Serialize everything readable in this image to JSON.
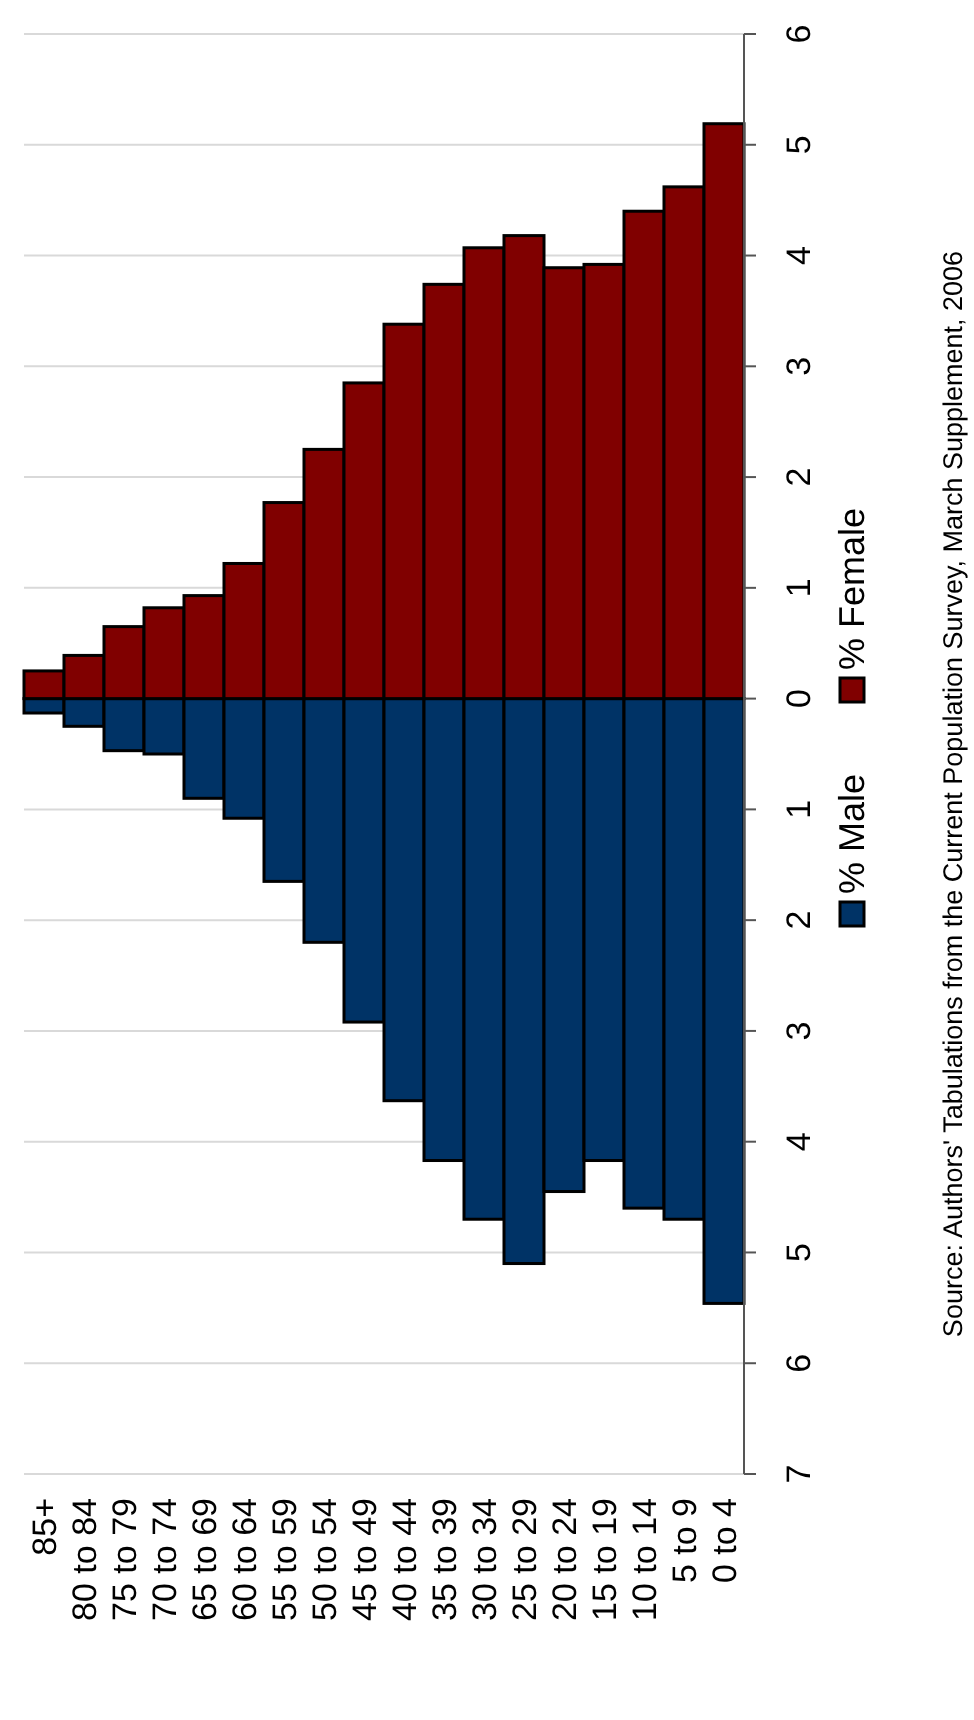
{
  "chart_data": {
    "type": "bar",
    "categories": [
      "85+",
      "80 to 84",
      "75 to 79",
      "70 to 74",
      "65 to 69",
      "60 to 64",
      "55 to 59",
      "50 to 54",
      "45 to 49",
      "40 to 44",
      "35 to 39",
      "30 to 34",
      "25 to 29",
      "20 to 24",
      "15 to 19",
      "10 to 14",
      "5 to 9",
      "0 to 4"
    ],
    "series": [
      {
        "name": "% Male",
        "color": "#003366",
        "values": [
          -0.13,
          -0.25,
          -0.47,
          -0.5,
          -0.9,
          -1.08,
          -1.65,
          -2.2,
          -2.92,
          -3.63,
          -4.17,
          -4.7,
          -5.1,
          -4.45,
          -4.17,
          -4.6,
          -4.7,
          -5.46
        ]
      },
      {
        "name": "% Female",
        "color": "#800000",
        "values": [
          0.25,
          0.39,
          0.65,
          0.82,
          0.93,
          1.22,
          1.77,
          2.25,
          2.85,
          3.38,
          3.74,
          4.07,
          4.18,
          3.89,
          3.92,
          4.4,
          4.62,
          5.19
        ]
      }
    ],
    "ylim": [
      -7,
      6
    ],
    "yticks": [
      {
        "value": -7,
        "label": "7"
      },
      {
        "value": -6,
        "label": "6"
      },
      {
        "value": -5,
        "label": "5"
      },
      {
        "value": -4,
        "label": "4"
      },
      {
        "value": -3,
        "label": "3"
      },
      {
        "value": -2,
        "label": "2"
      },
      {
        "value": -1,
        "label": "1"
      },
      0,
      1,
      2,
      3,
      4,
      5,
      6
    ],
    "grid": "y",
    "legend": "right",
    "stacked": true,
    "annotations": [
      "Source: Authors' Tabulations from the Current Population Survey, March Supplement, 2006"
    ]
  }
}
